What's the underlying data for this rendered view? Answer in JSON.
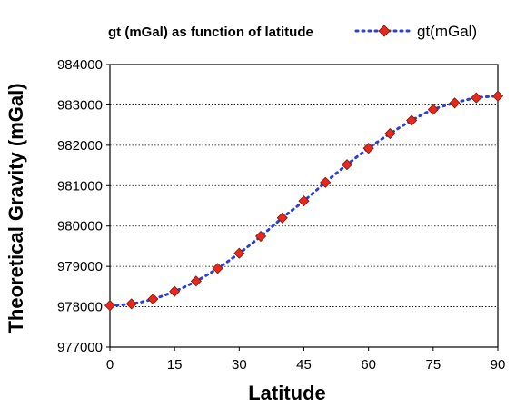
{
  "chart_data": {
    "type": "line",
    "title": "gt (mGal) as function of latitude",
    "xlabel": "Latitude",
    "ylabel": "Theoretical Gravity (mGal)",
    "xlim": [
      0,
      90
    ],
    "ylim": [
      977000,
      984000
    ],
    "x_ticks": [
      "0",
      "15",
      "30",
      "45",
      "60",
      "75",
      "90"
    ],
    "y_ticks": [
      "977000",
      "978000",
      "979000",
      "980000",
      "981000",
      "982000",
      "983000",
      "984000"
    ],
    "grid": "horizontal dotted",
    "legend_position": "top-right",
    "series": [
      {
        "name": "gt(mGal)",
        "line_color": "#2a3fd6",
        "marker_color": "#e8281e",
        "marker": "diamond",
        "x": [
          0,
          5,
          10,
          15,
          20,
          25,
          30,
          35,
          40,
          45,
          50,
          55,
          60,
          65,
          70,
          75,
          80,
          85,
          90
        ],
        "values": [
          978032,
          978072,
          978192,
          978381,
          978635,
          978952,
          979325,
          979746,
          980201,
          980620,
          981079,
          981520,
          981925,
          982288,
          982615,
          982884,
          983048,
          983175,
          983218
        ]
      }
    ]
  }
}
